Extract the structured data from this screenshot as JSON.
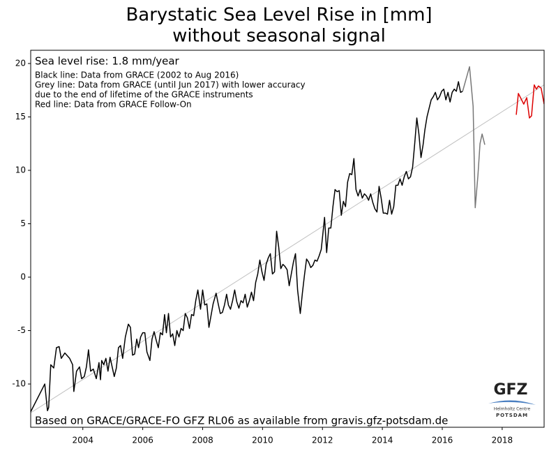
{
  "chart_data": {
    "type": "line",
    "title": [
      "Barystatic Sea Level Rise in [mm]",
      "without seasonal signal"
    ],
    "annotations": [
      "Sea level rise: 1.8 mm/year",
      "Black line: Data from GRACE (2002 to Aug 2016)",
      "Grey line: Data from GRACE (until Jun 2017) with lower accuracy",
      "due to the end of lifetime of the GRACE instruments",
      "Red line: Data from GRACE Follow-On"
    ],
    "footer": "Based on GRACE/GRACE-FO GFZ RL06 as available from gravis.gfz-potsdam.de",
    "logo": [
      "GFZ",
      "Helmholtz Centre",
      "POTSDAM"
    ],
    "xlim": [
      2002.26,
      2019.4
    ],
    "xticks": [
      2004,
      2006,
      2008,
      2010,
      2012,
      2014,
      2016,
      2018
    ],
    "ylim": [
      -14.05,
      21.24
    ],
    "yticks": [
      -10,
      -5,
      0,
      5,
      10,
      15,
      20
    ],
    "trend": {
      "color": "#c0c0c0",
      "x": [
        2002.26,
        2019.4
      ],
      "values": [
        -12.7,
        18
      ]
    },
    "series": [
      {
        "color": "#000000",
        "x": [
          2002.26,
          2002.73,
          2002.82,
          2002.86,
          2002.93,
          2003.03,
          2003.12,
          2003.21,
          2003.28,
          2003.4,
          2003.56,
          2003.66,
          2003.7,
          2003.79,
          2003.89,
          2003.96,
          2004.05,
          2004.12,
          2004.19,
          2004.26,
          2004.35,
          2004.45,
          2004.54,
          2004.59,
          2004.63,
          2004.7,
          2004.77,
          2004.84,
          2004.91,
          2004.98,
          2005.05,
          2005.12,
          2005.19,
          2005.26,
          2005.33,
          2005.42,
          2005.52,
          2005.59,
          2005.66,
          2005.73,
          2005.8,
          2005.86,
          2005.93,
          2006.0,
          2006.07,
          2006.14,
          2006.24,
          2006.31,
          2006.38,
          2006.45,
          2006.52,
          2006.59,
          2006.66,
          2006.73,
          2006.79,
          2006.86,
          2006.93,
          2007.0,
          2007.07,
          2007.14,
          2007.21,
          2007.28,
          2007.35,
          2007.42,
          2007.49,
          2007.56,
          2007.63,
          2007.7,
          2007.77,
          2007.84,
          2007.93,
          2008.0,
          2008.07,
          2008.14,
          2008.21,
          2008.28,
          2008.35,
          2008.45,
          2008.52,
          2008.59,
          2008.66,
          2008.73,
          2008.8,
          2008.86,
          2008.93,
          2009.0,
          2009.07,
          2009.14,
          2009.21,
          2009.28,
          2009.35,
          2009.42,
          2009.49,
          2009.56,
          2009.63,
          2009.7,
          2009.77,
          2009.84,
          2009.91,
          2009.98,
          2010.05,
          2010.12,
          2010.19,
          2010.26,
          2010.33,
          2010.4,
          2010.47,
          2010.54,
          2010.61,
          2010.68,
          2010.75,
          2010.82,
          2010.89,
          2010.96,
          2011.03,
          2011.1,
          2011.17,
          2011.26,
          2011.33,
          2011.4,
          2011.47,
          2011.54,
          2011.61,
          2011.68,
          2011.75,
          2011.82,
          2011.89,
          2011.96,
          2012.03,
          2012.07,
          2012.14,
          2012.21,
          2012.28,
          2012.35,
          2012.42,
          2012.49,
          2012.56,
          2012.63,
          2012.7,
          2012.77,
          2012.84,
          2012.91,
          2012.98,
          2013.05,
          2013.12,
          2013.19,
          2013.26,
          2013.33,
          2013.4,
          2013.47,
          2013.54,
          2013.61,
          2013.68,
          2013.75,
          2013.82,
          2013.89,
          2013.96,
          2014.03,
          2014.1,
          2014.17,
          2014.24,
          2014.31,
          2014.38,
          2014.45,
          2014.52,
          2014.59,
          2014.66,
          2014.73,
          2014.8,
          2014.87,
          2014.94,
          2015.01,
          2015.08,
          2015.15,
          2015.22,
          2015.29,
          2015.36,
          2015.42,
          2015.49,
          2015.56,
          2015.63,
          2015.7,
          2015.77,
          2015.84,
          2015.91,
          2015.98,
          2016.05,
          2016.12,
          2016.19,
          2016.26,
          2016.33,
          2016.4,
          2016.47,
          2016.54,
          2016.61,
          2016.68
        ],
        "values": [
          -12.6,
          -10,
          -12.5,
          -12.2,
          -8.2,
          -8.5,
          -6.6,
          -6.5,
          -7.6,
          -7.1,
          -7.6,
          -8.2,
          -10.7,
          -8.8,
          -8.4,
          -9.5,
          -9.3,
          -8.4,
          -6.8,
          -8.8,
          -8.6,
          -9.5,
          -8,
          -9.6,
          -7.8,
          -8.2,
          -7.6,
          -8.8,
          -7.5,
          -8.4,
          -9.3,
          -8.5,
          -6.6,
          -6.4,
          -7.6,
          -5.6,
          -4.4,
          -4.7,
          -7.3,
          -7.2,
          -5.8,
          -6.6,
          -5.6,
          -5.2,
          -5.2,
          -7,
          -7.8,
          -5.8,
          -5.1,
          -5.9,
          -6.6,
          -5.2,
          -5.4,
          -3.5,
          -5.2,
          -3.4,
          -5.6,
          -5.3,
          -6.4,
          -5,
          -5.6,
          -4.8,
          -5,
          -3.4,
          -3.8,
          -4.8,
          -3.5,
          -3.6,
          -2.2,
          -1.2,
          -3,
          -1.2,
          -2.6,
          -2.5,
          -4.7,
          -3.6,
          -2.5,
          -1.5,
          -2.5,
          -3.4,
          -3.3,
          -2.6,
          -1.6,
          -2.6,
          -3,
          -2.2,
          -1.2,
          -2.3,
          -2.9,
          -2.2,
          -2.4,
          -1.6,
          -2.8,
          -2.2,
          -1.4,
          -2.2,
          -0.5,
          0.3,
          1.6,
          0.5,
          -0.3,
          1.2,
          1.8,
          2.2,
          0.3,
          0.5,
          4.3,
          2.8,
          0.8,
          1.2,
          1,
          0.7,
          -0.8,
          0.3,
          1.4,
          2.2,
          -1.2,
          -3.4,
          -1.5,
          0.2,
          1.7,
          1.4,
          0.9,
          1.1,
          1.6,
          1.5,
          2,
          2.6,
          4.5,
          5.6,
          2.3,
          4.6,
          4.6,
          6.6,
          8.2,
          8,
          8.1,
          5.8,
          7.1,
          6.6,
          8.9,
          9.7,
          9.6,
          11.1,
          8.2,
          7.6,
          8.2,
          7.4,
          7.8,
          7.6,
          7.2,
          7.8,
          7,
          6.4,
          6.1,
          8.5,
          7.4,
          6,
          6,
          5.9,
          7.2,
          5.9,
          6.6,
          8.6,
          8.6,
          9.2,
          8.6,
          9.4,
          9.9,
          9.2,
          9.4,
          10.3,
          12.5,
          14.9,
          13.4,
          11.2,
          12.4,
          13.8,
          15,
          15.8,
          16.6,
          16.9,
          17.3,
          16.6,
          16.9,
          17.4,
          17.6,
          16.6,
          17.3,
          16.4,
          17.3,
          17.6,
          17.4,
          18.3,
          17.3,
          17.4
        ]
      },
      {
        "color": "#777777",
        "x": [
          2016.68,
          2016.91,
          2017.03,
          2017.1,
          2017.19,
          2017.26,
          2017.33,
          2017.42
        ],
        "values": [
          17.4,
          19.7,
          16,
          6.5,
          9.5,
          12.5,
          13.4,
          12.4
        ]
      },
      {
        "color": "#dd0000",
        "x": [
          2018.47,
          2018.54,
          2018.63,
          2018.72,
          2018.82,
          2018.91,
          2018.98,
          2019.07,
          2019.14,
          2019.21,
          2019.3,
          2019.4
        ],
        "values": [
          15.2,
          17.2,
          16.7,
          16.2,
          16.8,
          14.9,
          15.1,
          18,
          17.6,
          17.9,
          17.7,
          16.2
        ]
      }
    ]
  }
}
